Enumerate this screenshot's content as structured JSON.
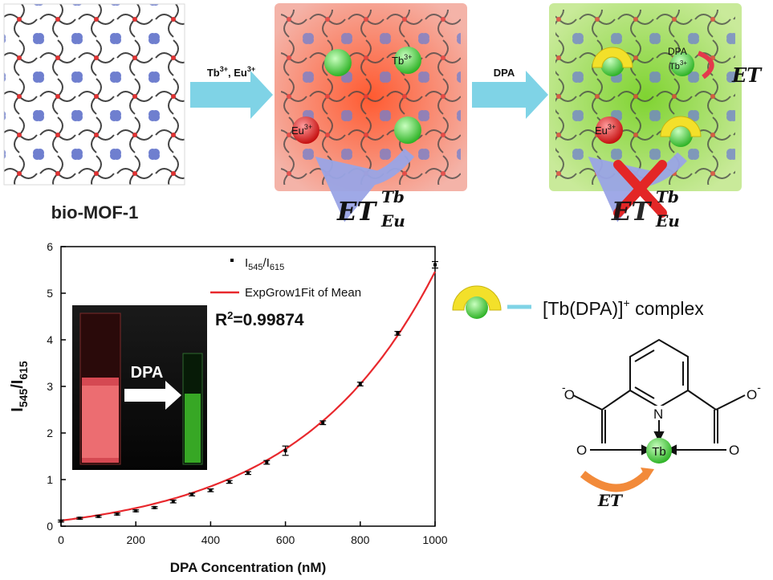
{
  "scheme": {
    "mof_label": "bio-MOF-1",
    "arrow1_label_tb": "Tb",
    "arrow1_label_tb_sup": "3+",
    "arrow1_label_sep": ", Eu",
    "arrow1_label_eu_sup": "3+",
    "arrow2_label": "DPA",
    "tb_ion": "Tb",
    "tb_ion_sup": "3+",
    "eu_ion": "Eu",
    "eu_ion_sup": "3+",
    "dpa_tag": "DPA",
    "et_label": "ET",
    "et_sup": "Tb",
    "et_sub": "Eu",
    "colors": {
      "tb": "#3fcf34",
      "eu": "#e11d1d",
      "arrow": "#7fd3e6",
      "panel2": "#f4b3a8",
      "panel3": "#c9ea9a",
      "cross": "#e32626",
      "bend_arrow": "#9aa5e6"
    }
  },
  "legend": {
    "complex_label": "[Tb(DPA)]",
    "complex_sup": "+",
    "complex_suffix": " complex",
    "o_minus": "O",
    "minus": "-",
    "o_atom": "O",
    "n_atom": "N",
    "tb_atom": "Tb",
    "et_label": "ET"
  },
  "inset": {
    "arrow_label": "DPA"
  },
  "chart_data": {
    "type": "scatter",
    "xlabel": "DPA Concentration (nM)",
    "ylabel_main": "I",
    "ylabel_sub1": "545",
    "ylabel_sep": "/I",
    "ylabel_sub2": "615",
    "xlim": [
      0,
      1000
    ],
    "ylim": [
      0,
      6
    ],
    "xticks": [
      0,
      200,
      400,
      600,
      800,
      1000
    ],
    "yticks": [
      0,
      1,
      2,
      3,
      4,
      5,
      6
    ],
    "x": [
      0,
      50,
      100,
      150,
      200,
      250,
      300,
      350,
      400,
      450,
      500,
      550,
      600,
      700,
      800,
      900,
      1000
    ],
    "y": [
      0.11,
      0.17,
      0.21,
      0.26,
      0.33,
      0.4,
      0.53,
      0.68,
      0.77,
      0.95,
      1.14,
      1.37,
      1.62,
      2.22,
      3.05,
      4.14,
      5.61
    ],
    "err": [
      0.02,
      0.02,
      0.02,
      0.02,
      0.02,
      0.02,
      0.03,
      0.03,
      0.03,
      0.03,
      0.03,
      0.04,
      0.1,
      0.04,
      0.04,
      0.04,
      0.07
    ],
    "legend_points_main": "I",
    "legend_points_sub1": "545",
    "legend_points_sep": "/I",
    "legend_points_sub2": "615",
    "legend_fit": "ExpGrow1Fit of Mean",
    "r2_label": "R",
    "r2_sup": "2",
    "r2_value": "=0.99874",
    "fit": {
      "y0": -0.245,
      "A": 0.366,
      "t": 364
    },
    "colors": {
      "fit": "#e8282d",
      "points": "#000000"
    }
  }
}
